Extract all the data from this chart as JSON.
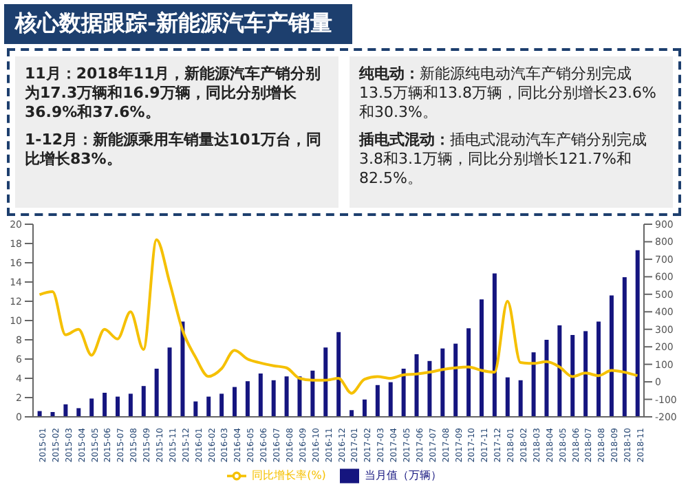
{
  "chart_data": {
    "type": "bar",
    "title": "核心数据跟踪-新能源汽车产销量",
    "annotations": [
      "11月：2018年11月，新能源汽车产销分别为17.3万辆和16.9万辆，同比分别增长36.9%和37.6%。",
      "1-12月：新能源乘用车销量达101万台，同比增长83%。",
      "纯电动：新能源纯电动汽车产销分别完成13.5万辆和13.8万辆，同比分别增长23.6%和30.3%。",
      "插电式混动：插电式混动汽车产销分别完成3.8和3.1万辆，同比分别增长121.7%和82.5%。"
    ],
    "categories": [
      "2015-01",
      "2015-02",
      "2015-03",
      "2015-04",
      "2015-05",
      "2015-06",
      "2015-07",
      "2015-08",
      "2015-09",
      "2015-10",
      "2015-11",
      "2015-12",
      "2016-01",
      "2016-02",
      "2016-03",
      "2016-04",
      "2016-05",
      "2016-06",
      "2016-07",
      "2016-08",
      "2016-09",
      "2016-10",
      "2016-11",
      "2016-12",
      "2017-01",
      "2017-02",
      "2017-03",
      "2017-04",
      "2017-05",
      "2017-06",
      "2017-07",
      "2017-08",
      "2017-09",
      "2017-10",
      "2017-11",
      "2017-12",
      "2018-01",
      "2018-02",
      "2018-03",
      "2018-04",
      "2018-05",
      "2018-06",
      "2018-07",
      "2018-08",
      "2018-09",
      "2018-10",
      "2018-11"
    ],
    "series": [
      {
        "name": "当月值（万辆）",
        "color": "#15157f",
        "values": [
          0.6,
          0.5,
          1.3,
          0.9,
          1.9,
          2.5,
          2.1,
          2.4,
          3.2,
          5.0,
          7.2,
          9.9,
          1.6,
          2.1,
          2.4,
          3.1,
          3.7,
          4.5,
          3.8,
          4.2,
          4.2,
          4.8,
          7.2,
          8.8,
          0.7,
          1.8,
          3.3,
          3.6,
          5.0,
          6.5,
          5.8,
          7.1,
          7.6,
          9.2,
          12.2,
          14.9,
          4.1,
          3.8,
          6.7,
          8.0,
          9.5,
          8.5,
          8.9,
          9.9,
          12.6,
          14.5,
          17.3
        ]
      },
      {
        "name": "同比增长率(%)",
        "type": "line",
        "axis": "y2",
        "color": "#f5c000",
        "values": [
          498,
          515,
          268,
          300,
          152,
          300,
          245,
          400,
          185,
          812,
          570,
          295,
          141,
          31,
          75,
          180,
          130,
          108,
          92,
          80,
          20,
          9,
          9,
          20,
          -65,
          15,
          30,
          20,
          40,
          45,
          55,
          70,
          80,
          85,
          65,
          55,
          460,
          110,
          105,
          115,
          85,
          30,
          50,
          35,
          65,
          55,
          35
        ]
      }
    ],
    "ylim": [
      0,
      20
    ],
    "yticks": [
      0,
      2,
      4,
      6,
      8,
      10,
      12,
      14,
      16,
      18,
      20
    ],
    "y2lim": [
      -200,
      900
    ],
    "y2ticks": [
      -200,
      -100,
      0,
      100,
      200,
      300,
      400,
      500,
      600,
      700,
      800,
      900
    ],
    "legend": "bottom",
    "marker": "none"
  }
}
